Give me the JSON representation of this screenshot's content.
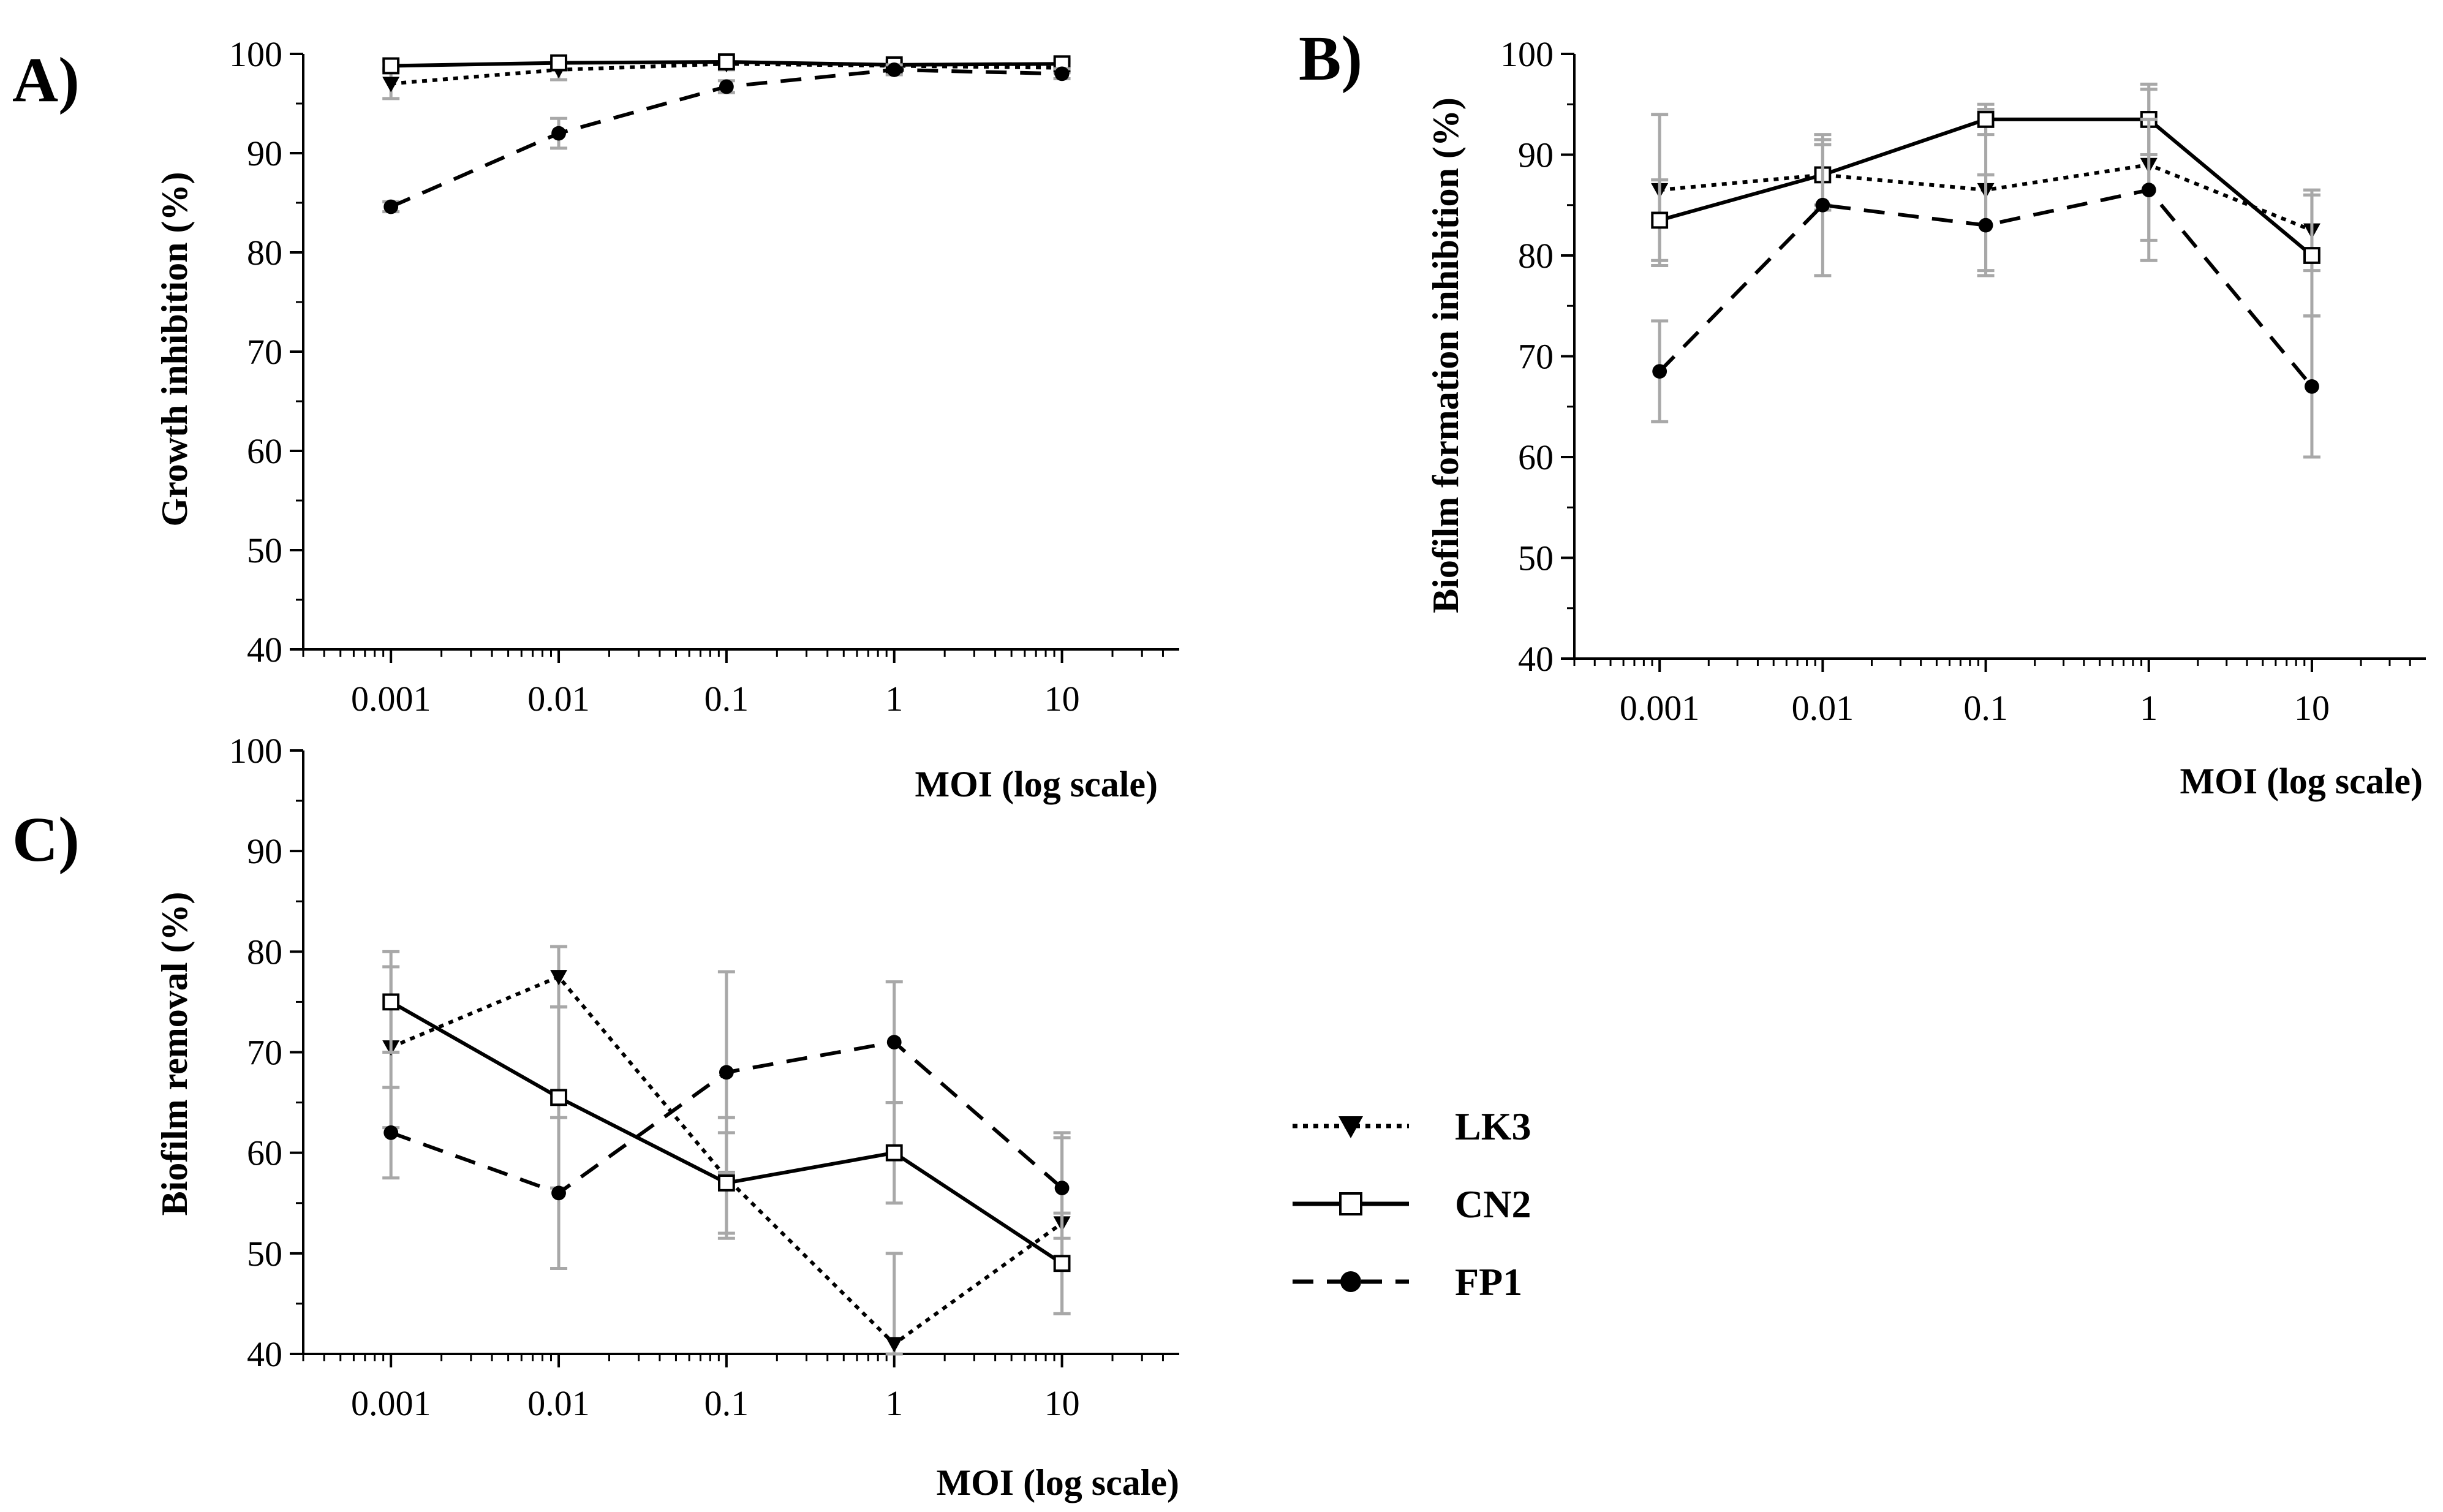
{
  "legend": [
    {
      "name": "LK3",
      "style": "dotted",
      "marker": "triangle-down"
    },
    {
      "name": "CN2",
      "style": "solid",
      "marker": "square-open"
    },
    {
      "name": "FP1",
      "style": "dashed",
      "marker": "circle-filled"
    }
  ],
  "chart_data": [
    {
      "panel": "A)",
      "type": "line",
      "xscale": "log",
      "x": [
        0.001,
        0.01,
        0.1,
        1,
        10
      ],
      "xticklabels": [
        "0.001",
        "0.01",
        "0.1",
        "1",
        "10"
      ],
      "xlim": [
        0.0003,
        50
      ],
      "ylim": [
        40,
        100
      ],
      "yticks": [
        40,
        50,
        60,
        70,
        80,
        90,
        100
      ],
      "ylabel": "Growth inhibition (%)",
      "xlabel": "MOI (log scale)",
      "series": [
        {
          "name": "LK3",
          "values": [
            97.0,
            98.4,
            99.0,
            98.8,
            98.6
          ],
          "errors": [
            1.5,
            1.0,
            0.6,
            0.5,
            0.5
          ]
        },
        {
          "name": "CN2",
          "values": [
            98.8,
            99.1,
            99.2,
            98.9,
            99.0
          ],
          "errors": [
            0.5,
            0.4,
            0.4,
            0.4,
            0.4
          ]
        },
        {
          "name": "FP1",
          "values": [
            84.6,
            92.0,
            96.7,
            98.4,
            98.0
          ],
          "errors": [
            0.5,
            1.5,
            0.6,
            0.5,
            0.5
          ]
        }
      ]
    },
    {
      "panel": "B)",
      "type": "line",
      "xscale": "log",
      "x": [
        0.001,
        0.01,
        0.1,
        1,
        10
      ],
      "xticklabels": [
        "0.001",
        "0.01",
        "0.1",
        "1",
        "10"
      ],
      "xlim": [
        0.0003,
        50
      ],
      "ylim": [
        40,
        100
      ],
      "yticks": [
        40,
        50,
        60,
        70,
        80,
        90,
        100
      ],
      "ylabel": "Biofilm formation inhibition (%)",
      "xlabel": "MOI (log scale)",
      "series": [
        {
          "name": "LK3",
          "values": [
            86.5,
            88.0,
            86.5,
            89.0,
            82.5
          ],
          "errors": [
            7.5,
            3.5,
            8.0,
            7.5,
            4.0
          ]
        },
        {
          "name": "CN2",
          "values": [
            83.5,
            88.0,
            93.5,
            93.5,
            80.0
          ],
          "errors": [
            4.0,
            3.0,
            1.5,
            3.5,
            6.0
          ]
        },
        {
          "name": "FP1",
          "values": [
            68.5,
            85.0,
            83.0,
            86.5,
            67.0
          ],
          "errors": [
            5.0,
            7.0,
            5.0,
            7.0,
            7.0
          ]
        }
      ]
    },
    {
      "panel": "C)",
      "type": "line",
      "xscale": "log",
      "x": [
        0.001,
        0.01,
        0.1,
        1,
        10
      ],
      "xticklabels": [
        "0.001",
        "0.01",
        "0.1",
        "1",
        "10"
      ],
      "xlim": [
        0.0003,
        50
      ],
      "ylim": [
        40,
        100
      ],
      "yticks": [
        40,
        50,
        60,
        70,
        80,
        90,
        100
      ],
      "ylabel": "Biofilm removal (%)",
      "xlabel": "MOI (log scale)",
      "series": [
        {
          "name": "LK3",
          "values": [
            70.5,
            77.5,
            57.5,
            41.0,
            53.0
          ],
          "errors": [
            8.0,
            3.0,
            6.0,
            9.0,
            9.0
          ]
        },
        {
          "name": "CN2",
          "values": [
            75.0,
            65.5,
            57.0,
            60.0,
            49.0
          ],
          "errors": [
            5.0,
            9.0,
            5.0,
            5.0,
            5.0
          ]
        },
        {
          "name": "FP1",
          "values": [
            62.0,
            56.0,
            68.0,
            71.0,
            56.5
          ],
          "errors": [
            4.5,
            7.5,
            10.0,
            6.0,
            5.0
          ]
        }
      ]
    }
  ]
}
